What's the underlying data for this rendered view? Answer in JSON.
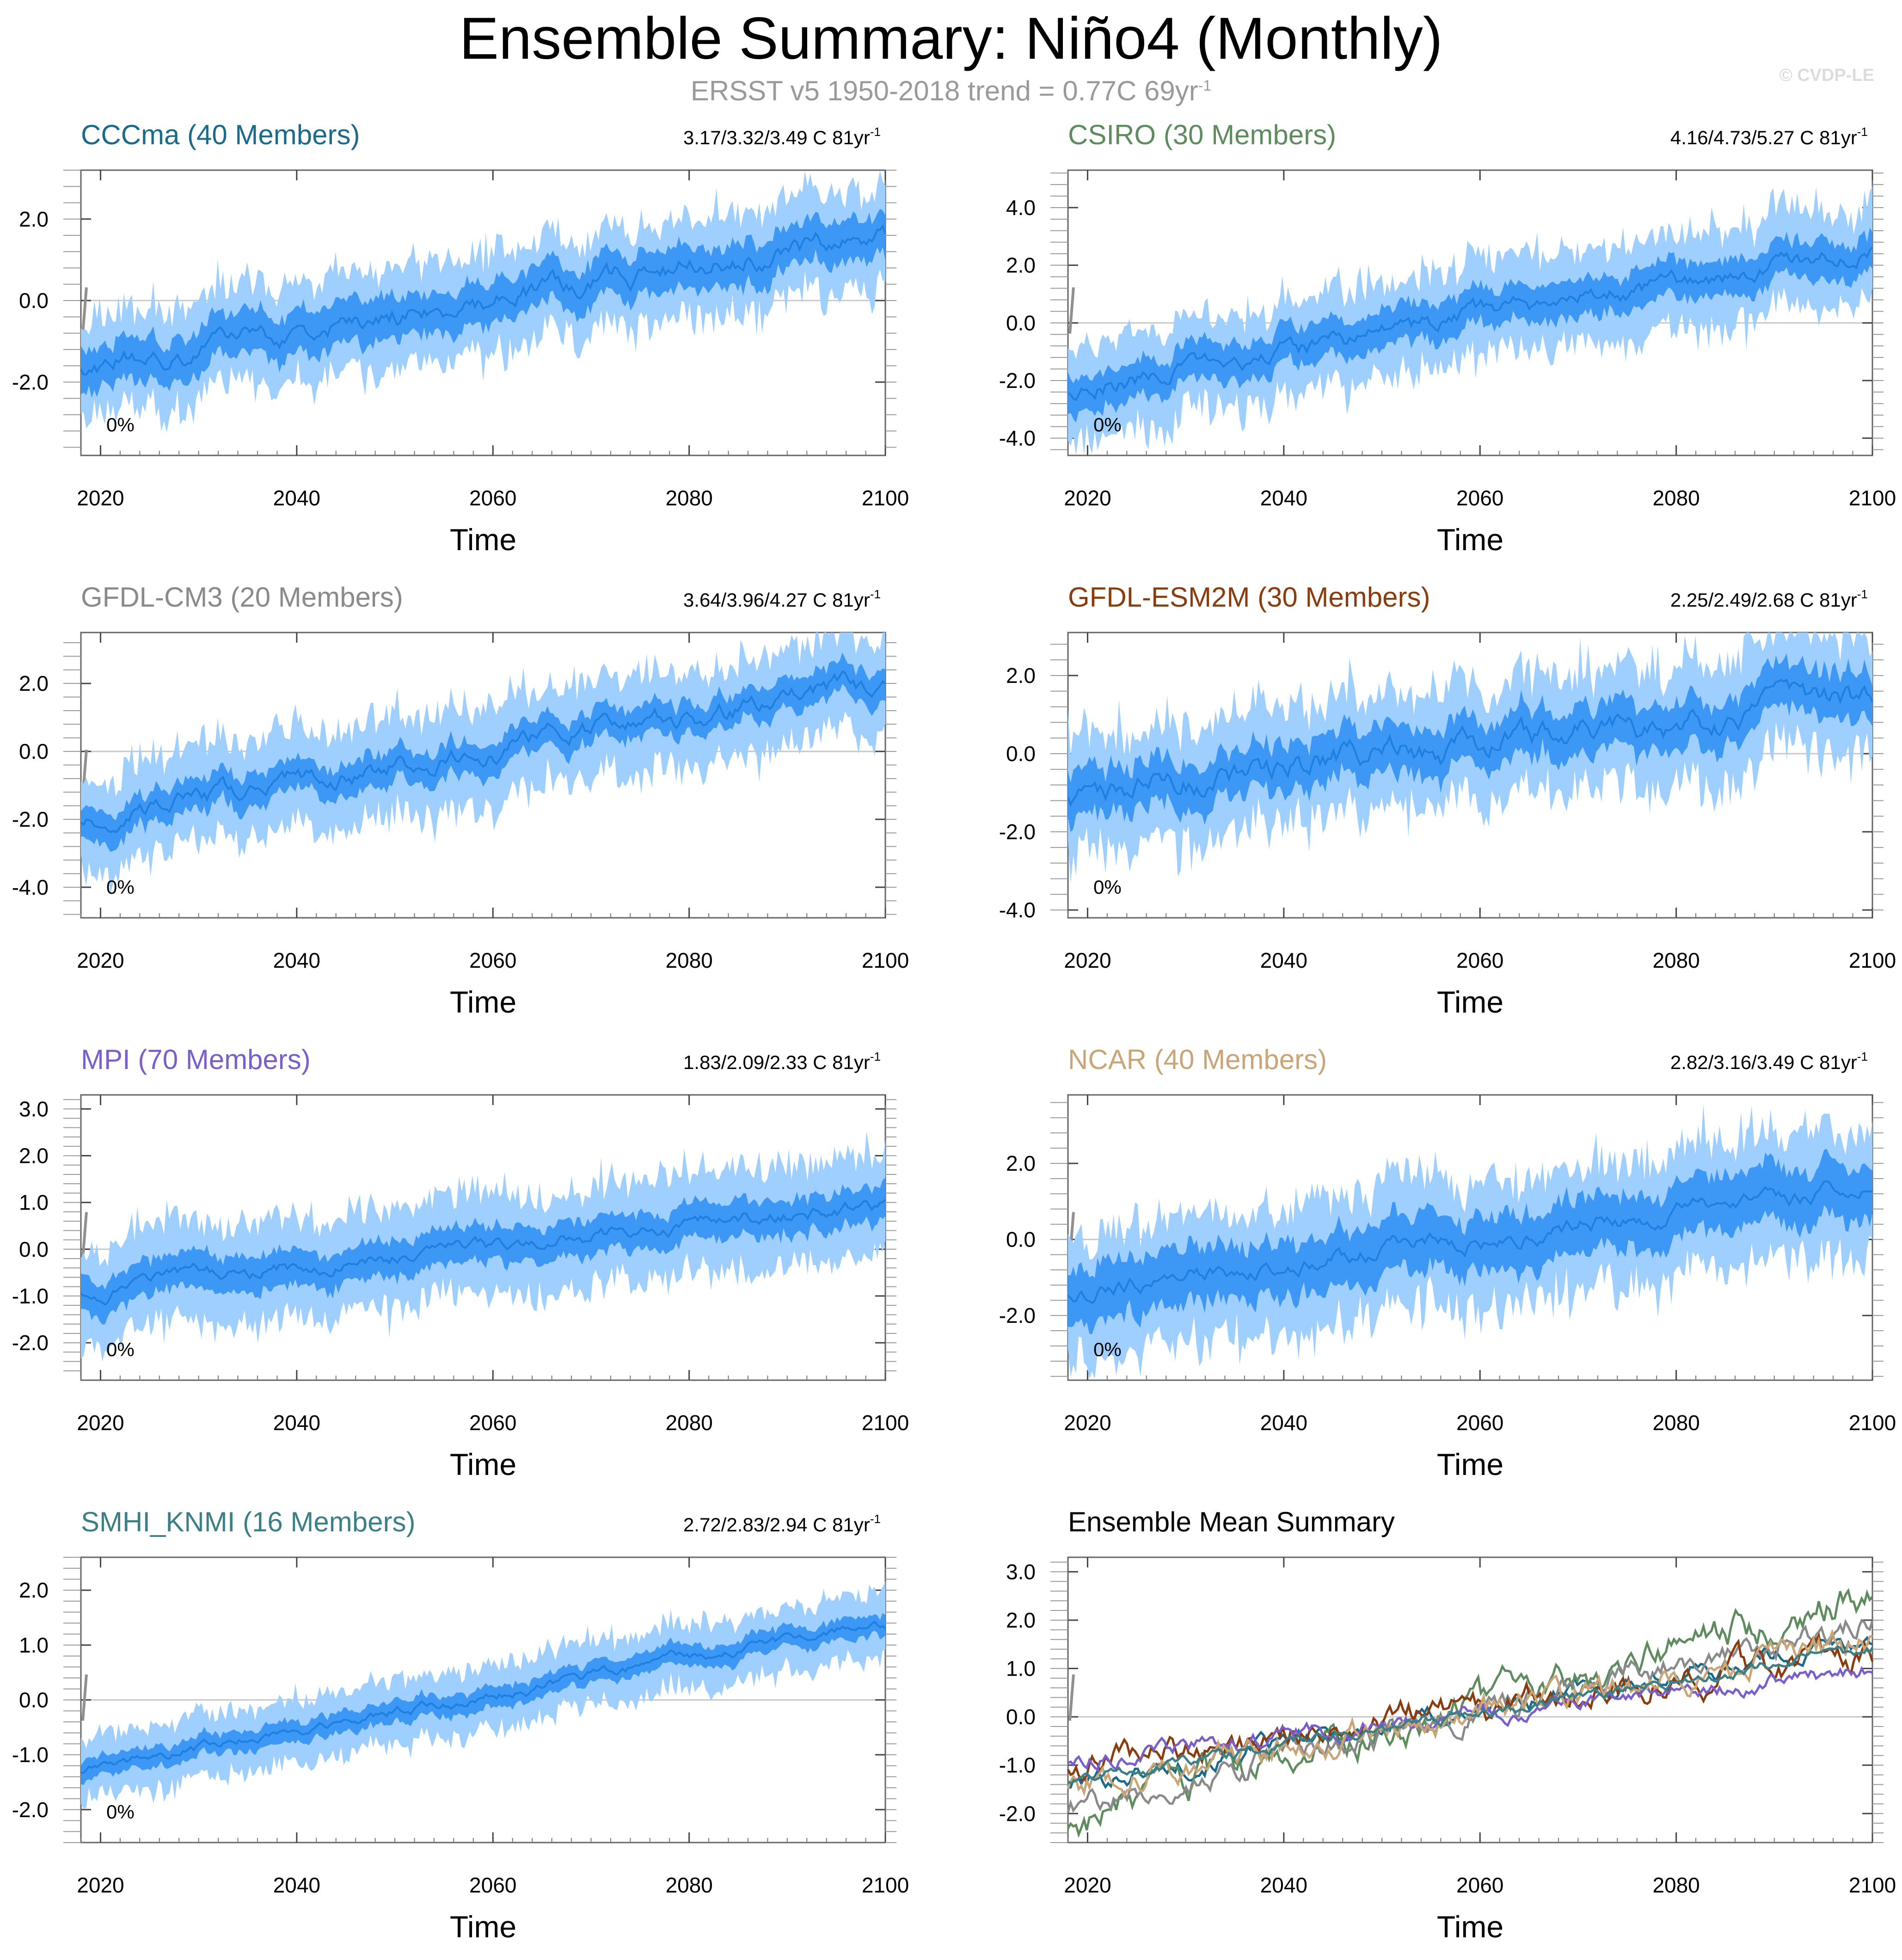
{
  "figure": {
    "title": "Ensemble Summary: Niño4 (Monthly)",
    "subtitle_main": "ERSST v5 1950-2018 trend = 0.77C 69yr",
    "subtitle_exp": "-1",
    "watermark": "© CVDP-LE"
  },
  "chart_data": [
    {
      "type": "area",
      "id": "cccma",
      "title": "CCCma (40 Members)",
      "title_color": "#1c6a8a",
      "trend_text": "3.17/3.32/3.49 C 81yr",
      "trend_exp": "-1",
      "percent_label": "0%",
      "xlabel": "Time",
      "xlim": [
        2018,
        2100
      ],
      "xticks": [
        2020,
        2040,
        2060,
        2080,
        2100
      ],
      "ylim": [
        -3.8,
        3.2
      ],
      "yticks": [
        -2.0,
        0.0,
        2.0
      ],
      "yticklabels": [
        "-2.0",
        "0.0",
        "2.0"
      ],
      "mean_start": -1.6,
      "mean_end": 1.6,
      "inner_spread": 0.6,
      "outer_spread": 1.15,
      "wiggle": 0.35,
      "seed": 11
    },
    {
      "type": "area",
      "id": "csiro",
      "title": "CSIRO (30 Members)",
      "title_color": "#5e8c5e",
      "trend_text": "4.16/4.73/5.27 C 81yr",
      "trend_exp": "-1",
      "percent_label": "0%",
      "xlabel": "Time",
      "xlim": [
        2018,
        2100
      ],
      "xticks": [
        2020,
        2040,
        2060,
        2080,
        2100
      ],
      "ylim": [
        -4.6,
        5.3
      ],
      "yticks": [
        -4.0,
        -2.0,
        0.0,
        2.0,
        4.0
      ],
      "yticklabels": [
        "-4.0",
        "-2.0",
        "0.0",
        "2.0",
        "4.0"
      ],
      "mean_start": -2.3,
      "mean_end": 2.6,
      "inner_spread": 0.75,
      "outer_spread": 1.55,
      "wiggle": 0.45,
      "seed": 23
    },
    {
      "type": "area",
      "id": "gfdl-cm3",
      "title": "GFDL-CM3 (20 Members)",
      "title_color": "#8a8a8a",
      "trend_text": "3.64/3.96/4.27 C 81yr",
      "trend_exp": "-1",
      "percent_label": "0%",
      "xlabel": "Time",
      "xlim": [
        2018,
        2100
      ],
      "xticks": [
        2020,
        2040,
        2060,
        2080,
        2100
      ],
      "ylim": [
        -4.9,
        3.5
      ],
      "yticks": [
        -4.0,
        -2.0,
        0.0,
        2.0
      ],
      "yticklabels": [
        "-4.0",
        "-2.0",
        "0.0",
        "2.0"
      ],
      "mean_start": -2.0,
      "mean_end": 2.0,
      "inner_spread": 0.55,
      "outer_spread": 1.35,
      "wiggle": 0.4,
      "seed": 37
    },
    {
      "type": "area",
      "id": "gfdl-esm2m",
      "title": "GFDL-ESM2M (30 Members)",
      "title_color": "#8a3c0e",
      "trend_text": "2.25/2.49/2.68 C 81yr",
      "trend_exp": "-1",
      "percent_label": "0%",
      "xlabel": "Time",
      "xlim": [
        2018,
        2100
      ],
      "xticks": [
        2020,
        2040,
        2060,
        2080,
        2100
      ],
      "ylim": [
        -4.2,
        3.1
      ],
      "yticks": [
        -4.0,
        -2.0,
        0.0,
        2.0
      ],
      "yticklabels": [
        "-4.0",
        "-2.0",
        "0.0",
        "2.0"
      ],
      "mean_start": -1.0,
      "mean_end": 1.3,
      "inner_spread": 0.7,
      "outer_spread": 1.4,
      "wiggle": 0.45,
      "seed": 41
    },
    {
      "type": "area",
      "id": "mpi",
      "title": "MPI (70 Members)",
      "title_color": "#7a5fcc",
      "trend_text": "1.83/2.09/2.33 C 81yr",
      "trend_exp": "-1",
      "percent_label": "0%",
      "xlabel": "Time",
      "xlim": [
        2018,
        2100
      ],
      "xticks": [
        2020,
        2040,
        2060,
        2080,
        2100
      ],
      "ylim": [
        -2.8,
        3.3
      ],
      "yticks": [
        -2.0,
        -1.0,
        0.0,
        1.0,
        2.0,
        3.0
      ],
      "yticklabels": [
        "-2.0",
        "-1.0",
        "0.0",
        "1.0",
        "2.0",
        "3.0"
      ],
      "mean_start": -0.9,
      "mean_end": 0.95,
      "inner_spread": 0.45,
      "outer_spread": 1.0,
      "wiggle": 0.2,
      "seed": 53
    },
    {
      "type": "area",
      "id": "ncar",
      "title": "NCAR (40 Members)",
      "title_color": "#c9a577",
      "trend_text": "2.82/3.16/3.49 C 81yr",
      "trend_exp": "-1",
      "percent_label": "0%",
      "xlabel": "Time",
      "xlim": [
        2018,
        2100
      ],
      "xticks": [
        2020,
        2040,
        2060,
        2080,
        2100
      ],
      "ylim": [
        -3.7,
        3.8
      ],
      "yticks": [
        -2.0,
        0.0,
        2.0
      ],
      "yticklabels": [
        "-2.0",
        "0.0",
        "2.0"
      ],
      "mean_start": -1.4,
      "mean_end": 1.4,
      "inner_spread": 0.85,
      "outer_spread": 1.55,
      "wiggle": 0.3,
      "seed": 67
    },
    {
      "type": "area",
      "id": "smhi-knmi",
      "title": "SMHI_KNMI (16 Members)",
      "title_color": "#3d7f86",
      "trend_text": "2.72/2.83/2.94 C 81yr",
      "trend_exp": "-1",
      "percent_label": "0%",
      "xlabel": "Time",
      "xlim": [
        2018,
        2100
      ],
      "xticks": [
        2020,
        2040,
        2060,
        2080,
        2100
      ],
      "ylim": [
        -2.6,
        2.6
      ],
      "yticks": [
        -2.0,
        -1.0,
        0.0,
        1.0,
        2.0
      ],
      "yticklabels": [
        "-2.0",
        "-1.0",
        "0.0",
        "1.0",
        "2.0"
      ],
      "mean_start": -1.3,
      "mean_end": 1.4,
      "inner_spread": 0.22,
      "outer_spread": 0.55,
      "wiggle": 0.12,
      "seed": 79
    },
    {
      "type": "line",
      "id": "ensemble-mean",
      "title": "Ensemble Mean Summary",
      "title_color": "#000000",
      "xlabel": "Time",
      "xlim": [
        2018,
        2100
      ],
      "xticks": [
        2020,
        2040,
        2060,
        2080,
        2100
      ],
      "ylim": [
        -2.6,
        3.3
      ],
      "yticks": [
        -2.0,
        -1.0,
        0.0,
        1.0,
        2.0,
        3.0
      ],
      "yticklabels": [
        "-2.0",
        "-1.0",
        "0.0",
        "1.0",
        "2.0",
        "3.0"
      ],
      "series": [
        {
          "name": "CCCma",
          "color": "#1c6a8a",
          "start": -1.4,
          "end": 1.6,
          "wiggle": 0.18,
          "seed": 101
        },
        {
          "name": "CSIRO",
          "color": "#5e8c5e",
          "start": -2.2,
          "end": 2.6,
          "wiggle": 0.3,
          "seed": 103
        },
        {
          "name": "GFDL-CM3",
          "color": "#8a8a8a",
          "start": -1.9,
          "end": 2.0,
          "wiggle": 0.22,
          "seed": 107
        },
        {
          "name": "GFDL-ESM2M",
          "color": "#8a3c0e",
          "start": -1.0,
          "end": 1.3,
          "wiggle": 0.25,
          "seed": 109
        },
        {
          "name": "MPI",
          "color": "#7a5fcc",
          "start": -0.9,
          "end": 0.95,
          "wiggle": 0.15,
          "seed": 113
        },
        {
          "name": "NCAR",
          "color": "#c9a577",
          "start": -1.4,
          "end": 1.5,
          "wiggle": 0.25,
          "seed": 127
        },
        {
          "name": "SMHI_KNMI",
          "color": "#3d7f86",
          "start": -1.3,
          "end": 1.4,
          "wiggle": 0.1,
          "seed": 131
        }
      ]
    }
  ]
}
